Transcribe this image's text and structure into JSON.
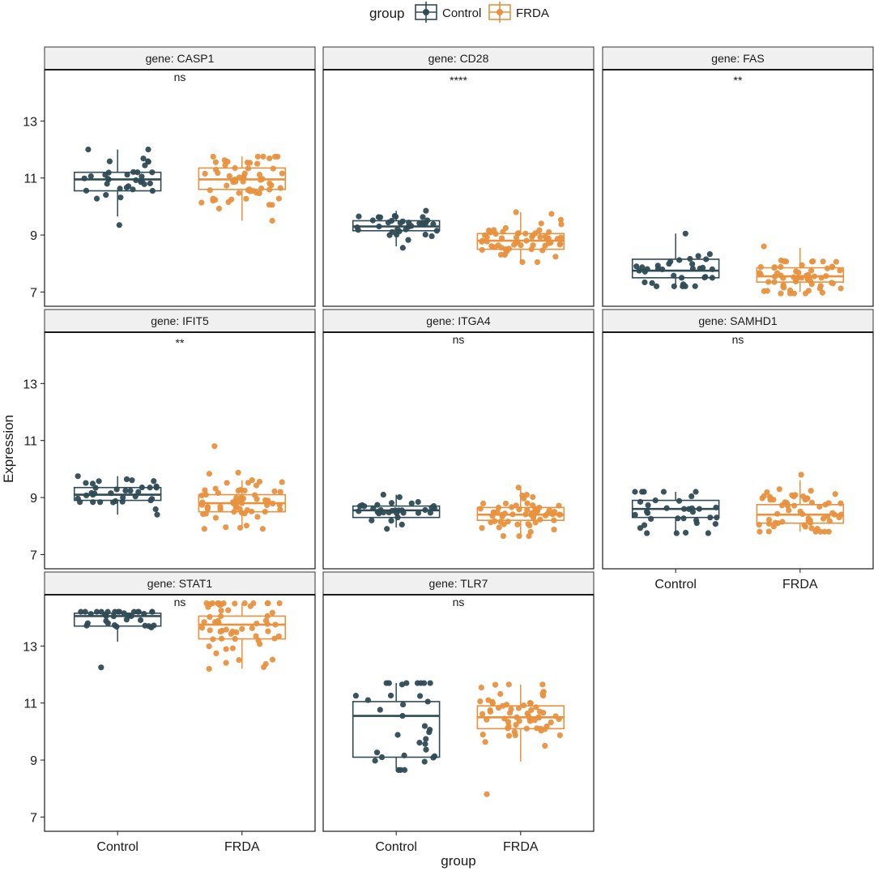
{
  "colors": {
    "Control": "#2f4b55",
    "FRDA": "#e8913e"
  },
  "legend": {
    "title": "group",
    "items": [
      "Control",
      "FRDA"
    ]
  },
  "chart_data": {
    "type": "boxplot",
    "xlabel": "group",
    "ylabel": "Expression",
    "categories": [
      "Control",
      "FRDA"
    ],
    "yticks": [
      7,
      9,
      11,
      13
    ],
    "ylim": [
      6.5,
      14.8
    ],
    "panels": [
      {
        "strip": "gene: CASP1",
        "sig": "ns",
        "control": {
          "q1": 10.55,
          "median": 10.95,
          "q3": 11.2,
          "wlo": 9.65,
          "whi": 12.0,
          "min": 9.35,
          "max": 12.0,
          "n": 34
        },
        "frda": {
          "q1": 10.6,
          "median": 10.95,
          "q3": 11.35,
          "wlo": 9.5,
          "whi": 11.75,
          "min": 9.5,
          "max": 11.75,
          "n": 60
        }
      },
      {
        "strip": "gene: CD28",
        "sig": "****",
        "control": {
          "q1": 9.15,
          "median": 9.3,
          "q3": 9.5,
          "wlo": 8.6,
          "whi": 9.85,
          "min": 8.55,
          "max": 9.85,
          "n": 34
        },
        "frda": {
          "q1": 8.5,
          "median": 8.8,
          "q3": 9.05,
          "wlo": 8.05,
          "whi": 9.8,
          "min": 8.05,
          "max": 9.8,
          "n": 60
        }
      },
      {
        "strip": "gene: FAS",
        "sig": "**",
        "control": {
          "q1": 7.5,
          "median": 7.75,
          "q3": 8.15,
          "wlo": 7.2,
          "whi": 9.05,
          "min": 7.2,
          "max": 9.05,
          "n": 34
        },
        "frda": {
          "q1": 7.35,
          "median": 7.55,
          "q3": 7.85,
          "wlo": 7.0,
          "whi": 8.55,
          "min": 6.95,
          "max": 8.6,
          "n": 60
        }
      },
      {
        "strip": "gene: IFIT5",
        "sig": "**",
        "control": {
          "q1": 8.9,
          "median": 9.1,
          "q3": 9.35,
          "wlo": 8.4,
          "whi": 9.75,
          "min": 8.4,
          "max": 9.75,
          "n": 34
        },
        "frda": {
          "q1": 8.5,
          "median": 8.8,
          "q3": 9.1,
          "wlo": 7.95,
          "whi": 9.6,
          "min": 7.9,
          "max": 10.8,
          "n": 60
        }
      },
      {
        "strip": "gene: ITGA4",
        "sig": "ns",
        "control": {
          "q1": 8.3,
          "median": 8.55,
          "q3": 8.7,
          "wlo": 7.95,
          "whi": 9.1,
          "min": 7.9,
          "max": 9.1,
          "n": 34
        },
        "frda": {
          "q1": 8.2,
          "median": 8.4,
          "q3": 8.65,
          "wlo": 7.65,
          "whi": 9.35,
          "min": 7.65,
          "max": 9.35,
          "n": 60
        }
      },
      {
        "strip": "gene: SAMHD1",
        "sig": "ns",
        "control": {
          "q1": 8.3,
          "median": 8.6,
          "q3": 8.9,
          "wlo": 7.75,
          "whi": 9.2,
          "min": 7.75,
          "max": 9.2,
          "n": 34
        },
        "frda": {
          "q1": 8.1,
          "median": 8.4,
          "q3": 8.75,
          "wlo": 7.8,
          "whi": 9.6,
          "min": 7.8,
          "max": 9.8,
          "n": 60
        }
      },
      {
        "strip": "gene: STAT1",
        "sig": "ns",
        "control": {
          "q1": 13.7,
          "median": 14.05,
          "q3": 14.15,
          "wlo": 13.15,
          "whi": 14.2,
          "min": 12.25,
          "max": 14.2,
          "n": 34
        },
        "frda": {
          "q1": 13.25,
          "median": 13.75,
          "q3": 14.05,
          "wlo": 12.2,
          "whi": 14.5,
          "min": 12.2,
          "max": 14.5,
          "n": 60
        }
      },
      {
        "strip": "gene: TLR7",
        "sig": "ns",
        "control": {
          "q1": 9.1,
          "median": 10.55,
          "q3": 11.05,
          "wlo": 8.7,
          "whi": 11.7,
          "min": 8.65,
          "max": 11.7,
          "n": 34
        },
        "frda": {
          "q1": 10.1,
          "median": 10.5,
          "q3": 10.9,
          "wlo": 8.95,
          "whi": 11.65,
          "min": 7.8,
          "max": 11.65,
          "n": 60
        }
      }
    ]
  }
}
